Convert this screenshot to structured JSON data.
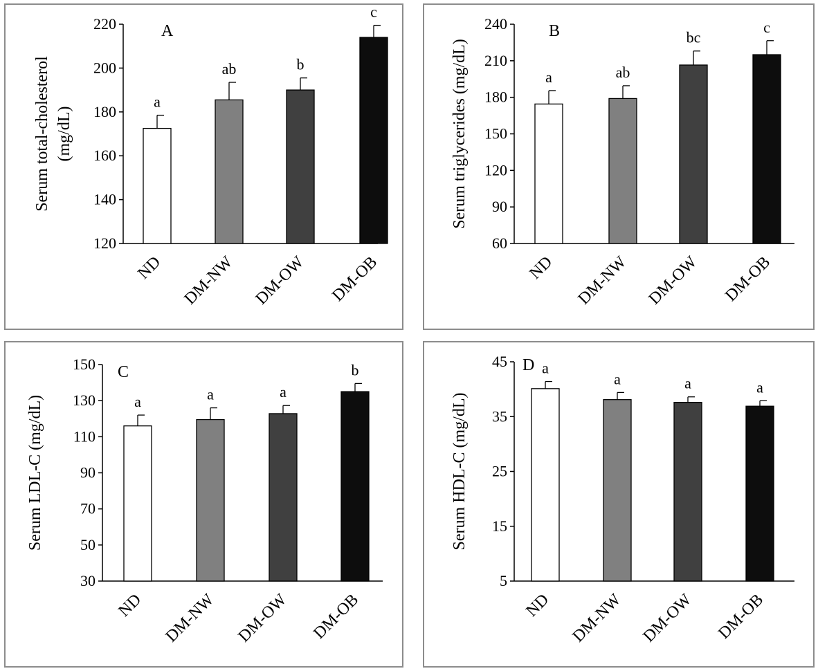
{
  "chart_data": [
    {
      "type": "bar",
      "panel_label": "A",
      "categories": [
        "ND",
        "DM-NW",
        "DM-OW",
        "DM-OB"
      ],
      "values": [
        172.5,
        185.5,
        190,
        214
      ],
      "errors": [
        6,
        8,
        5.5,
        5.5
      ],
      "significance": [
        "a",
        "ab",
        "b",
        "c"
      ],
      "ylabel_lines": [
        "Serum total-cholesterol",
        "(mg/dL)"
      ],
      "ylim": [
        120,
        220
      ],
      "yticks": [
        120,
        140,
        160,
        180,
        200,
        220
      ],
      "colors": [
        "#ffffff",
        "#808080",
        "#404040",
        "#0d0d0d"
      ]
    },
    {
      "type": "bar",
      "panel_label": "B",
      "categories": [
        "ND",
        "DM-NW",
        "DM-OW",
        "DM-OB"
      ],
      "values": [
        174.5,
        179,
        206.5,
        215
      ],
      "errors": [
        11,
        10.5,
        11.5,
        11.5
      ],
      "significance": [
        "a",
        "ab",
        "bc",
        "c"
      ],
      "ylabel_lines": [
        "Serum triglycerides (mg/dL)"
      ],
      "ylim": [
        60,
        240
      ],
      "yticks": [
        60,
        90,
        120,
        150,
        180,
        210,
        240
      ],
      "colors": [
        "#ffffff",
        "#808080",
        "#404040",
        "#0d0d0d"
      ]
    },
    {
      "type": "bar",
      "panel_label": "C",
      "categories": [
        "ND",
        "DM-NW",
        "DM-OW",
        "DM-OB"
      ],
      "values": [
        116,
        119.5,
        122.8,
        135
      ],
      "errors": [
        6,
        6.5,
        4.5,
        4.5
      ],
      "significance": [
        "a",
        "a",
        "a",
        "b"
      ],
      "ylabel_lines": [
        "Serum LDL-C (mg/dL)"
      ],
      "ylim": [
        30,
        150
      ],
      "yticks": [
        30,
        50,
        70,
        90,
        110,
        130,
        150
      ],
      "colors": [
        "#ffffff",
        "#808080",
        "#404040",
        "#0d0d0d"
      ]
    },
    {
      "type": "bar",
      "panel_label": "D",
      "categories": [
        "ND",
        "DM-NW",
        "DM-OW",
        "DM-OB"
      ],
      "values": [
        40.1,
        38.1,
        37.6,
        36.9
      ],
      "errors": [
        1.3,
        1.3,
        1.0,
        1.0
      ],
      "significance": [
        "a",
        "a",
        "a",
        "a"
      ],
      "ylabel_lines": [
        "Serum HDL-C (mg/dL)"
      ],
      "ylim": [
        5,
        45
      ],
      "yticks": [
        5,
        15,
        25,
        35,
        45
      ],
      "colors": [
        "#ffffff",
        "#808080",
        "#404040",
        "#0d0d0d"
      ]
    }
  ]
}
